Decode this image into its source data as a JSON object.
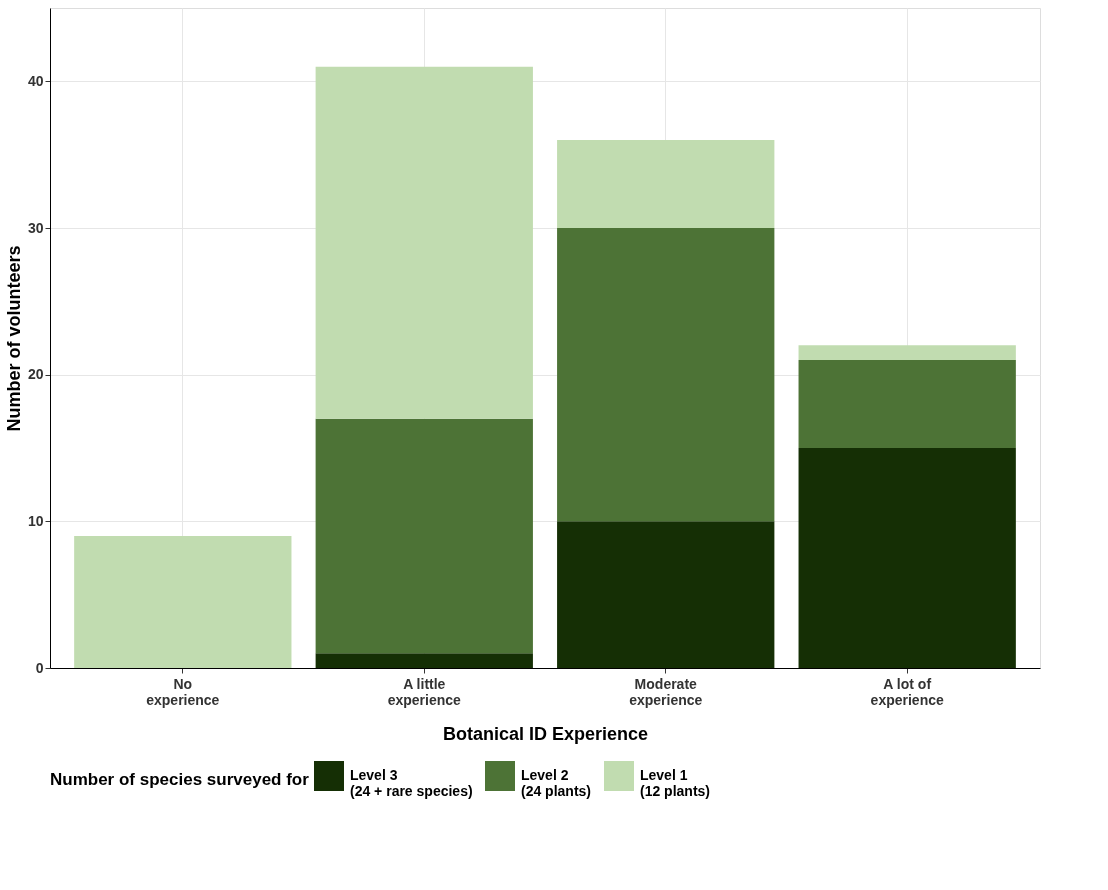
{
  "chart_data": {
    "type": "bar",
    "stacked": true,
    "xlabel": "Botanical ID Experience",
    "ylabel": "Number of volunteers",
    "legend_title": "Number of species surveyed for",
    "legend": "bottom",
    "grid": true,
    "categories": [
      "No\nexperience",
      "A little\nexperience",
      "Moderate\nexperience",
      "A lot of\nexperience"
    ],
    "ylim": [
      0,
      45
    ],
    "yticks": [
      0,
      10,
      20,
      30,
      40
    ],
    "series": [
      {
        "name": "Level 3\n(24 + rare species)",
        "color": "#152f05",
        "values": [
          0,
          1,
          10,
          15
        ]
      },
      {
        "name": "Level 2\n(24 plants)",
        "color": "#4d7336",
        "values": [
          0,
          16,
          20,
          6
        ]
      },
      {
        "name": "Level 1\n(12 plants)",
        "color": "#c1dcb0",
        "values": [
          9,
          24,
          6,
          1
        ]
      }
    ]
  }
}
